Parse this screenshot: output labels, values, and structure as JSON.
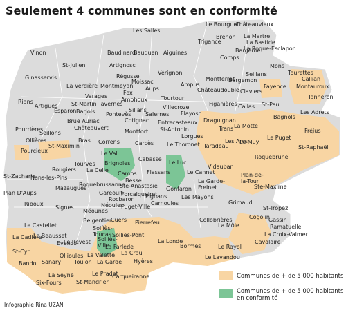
{
  "title": "Seulement 4 communes sont en conformité",
  "credit": "Infographie Rina UZAN",
  "legend": [
    {
      "label": "Communes de + de 5 000 habitants",
      "color": "#f8d5a3"
    },
    {
      "label": "Communes de + de 5 000 habitants\nen conformité",
      "color": "#7cc596"
    }
  ],
  "communes": [
    "Le Bourguet",
    "Châteauvieux",
    "Les Salles",
    "Brenon",
    "Trigance",
    "La Martre",
    "La Bastide",
    "La Roque-Esclapon",
    "Vinon",
    "Baudinard",
    "Bauduen",
    "Aiguines",
    "Bargème",
    "Comps",
    "St-Julien",
    "Artignosc",
    "Régusse",
    "Moissac",
    "Vérignon",
    "Mons",
    "Seillans",
    "Tourettes",
    "Callian",
    "Montauroux",
    "Ginasservis",
    "La Verdière",
    "Varages",
    "St-Martin",
    "Montmeyan",
    "Fox",
    "Amphoux",
    "Aups",
    "Ampus",
    "Montferrat",
    "Bargemon",
    "Châteaudouble",
    "Fayence",
    "Claviers",
    "Tanneron",
    "Rians",
    "Artigues",
    "Esparon",
    "Barjols",
    "Tavernes",
    "Sillans",
    "Pontevès",
    "Tourtour",
    "Villecroze",
    "Salernes",
    "Flayosc",
    "Figanières",
    "Callas",
    "St-Paul",
    "Bagnols",
    "Les Adrets",
    "Brue Auriac",
    "Cotignac",
    "Entrecasteaux",
    "Châteauvert",
    "Montfort",
    "St-Antonin",
    "Draguignan",
    "Trans",
    "La Motte",
    "Fréjus",
    "Pourrières",
    "Seillons",
    "Ollières",
    "Bras",
    "Correns",
    "Carcès",
    "Lorgues",
    "Les Arcs",
    "Le Muy",
    "Le Puget",
    "St-Raphaël",
    "Pourcieux",
    "St-Maximin",
    "Taradeau",
    "Le Thoronet",
    "Le Val",
    "Tourves",
    "Brignoles",
    "Cabasse",
    "Le Luc",
    "Roquebrune",
    "La Celle",
    "Camps",
    "Flassans",
    "Le Cannet",
    "Vidauban",
    "Rougiers",
    "St-Zacharie",
    "Nans-les-Pins",
    "Besse",
    "Plan-de-\nla-Tour",
    "Roquebrussanne",
    "Ste-Anastasie",
    "Gonfaron",
    "La Garde-\nFreinet",
    "Ste-Maxime",
    "Mazaugues",
    "Plan D'Aups",
    "Gareoult",
    "Forcalqueiret",
    "Pignans",
    "Les Mayons",
    "Rocbaron",
    "Riboux",
    "Néoules",
    "Puget-Ville",
    "Carnoules",
    "Grimaud",
    "St-Tropez",
    "Signes",
    "Méounes",
    "Belgentier",
    "Cuers",
    "Pierrefeu",
    "Collobrières",
    "Cogolin",
    "Gassin",
    "Ramatuelle",
    "Le Castellet",
    "Sollìès-\nToucas",
    "Solliès-Pont",
    "Solliès-\nVille",
    "La Farlède",
    "Le Revest",
    "La Môle",
    "La Croix-Valmer",
    "La Cadière",
    "Le Beausset",
    "Evenos",
    "La Londe",
    "Bormes",
    "Le Rayol",
    "Cavalaire",
    "St-Cyr",
    "Ollioules",
    "La Valette",
    "La Crau",
    "Toulon",
    "La Garde",
    "Hyères",
    "Le Lavandou",
    "Bandol",
    "Sanary",
    "Le Pradet",
    "La Seyne",
    "St-Mandrier",
    "Carqueiranne",
    "Six-Fours"
  ]
}
